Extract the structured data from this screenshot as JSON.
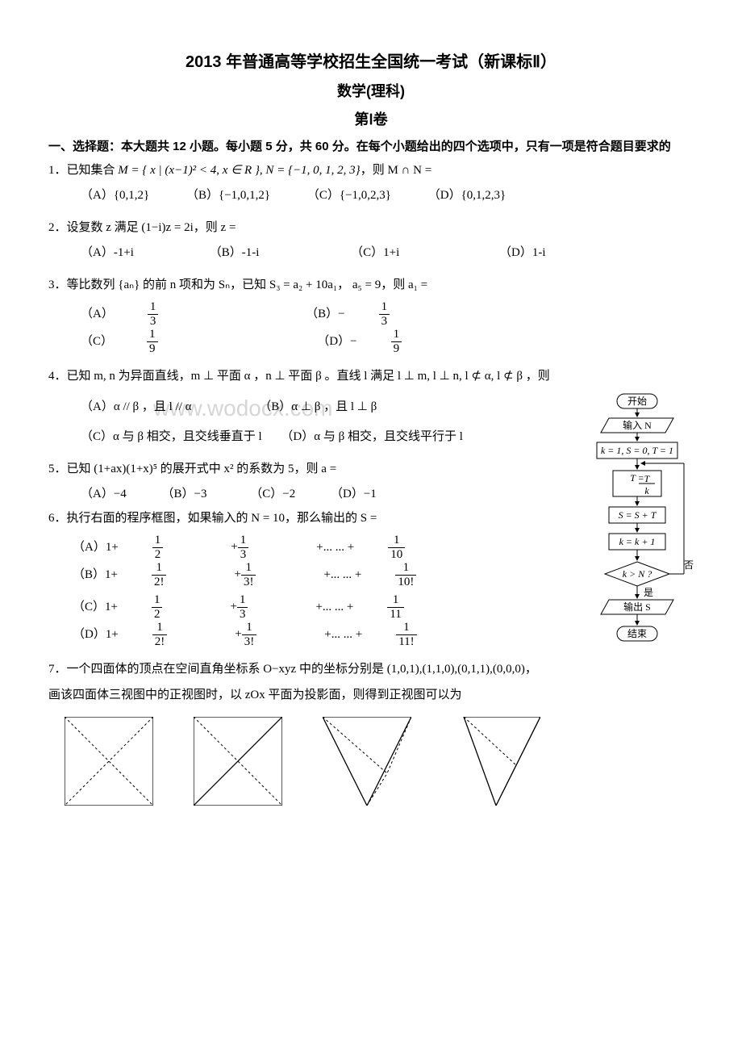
{
  "title": "2013 年普通高等学校招生全国统一考试（新课标Ⅱ）",
  "subtitle": "数学(理科)",
  "section": "第Ⅰ卷",
  "instructions": "一、选择题：本大题共 12 小题。每小题 5 分，共 60 分。在每个小题给出的四个选项中，只有一项是符合题目要求的",
  "watermark": "www.wodocx.com",
  "q1": {
    "text_pre": "1．已知集合 ",
    "math": "M = { x | (x−1)² < 4, x ∈ R }, N = {−1, 0, 1, 2, 3}",
    "text_post": "，则 M ∩ N =",
    "A": "（A）{0,1,2}",
    "B": "（B）{−1,0,1,2}",
    "C": "（C）{−1,0,2,3}",
    "D": "（D）{0,1,2,3}"
  },
  "q2": {
    "text": "2．设复数 z 满足 (1−i)z = 2i，则 z =",
    "A": "（A）-1+i",
    "B": "（B）-1-i",
    "C": "（C）1+i",
    "D": "（D）1-i"
  },
  "q3": {
    "text": "3．等比数列 {aₙ} 的前 n 项和为 Sₙ，已知 S₃ = a₂ + 10a₁， a₅ = 9，则 a₁ =",
    "A_label": "（A）",
    "A_num": "1",
    "A_den": "3",
    "B_label": "（B）−",
    "B_num": "1",
    "B_den": "3",
    "C_label": "（C）",
    "C_num": "1",
    "C_den": "9",
    "D_label": "（D）−",
    "D_num": "1",
    "D_den": "9"
  },
  "q4": {
    "text": "4．已知 m, n 为异面直线，m ⊥ 平面 α ，n ⊥ 平面 β 。直线 l 满足 l ⊥ m, l ⊥ n, l ⊄ α, l ⊄ β ，则",
    "A": "（A）α // β ，且 l // α",
    "B": "（B）α ⊥ β ，且 l ⊥ β",
    "C": "（C）α 与 β 相交，且交线垂直于 l",
    "D": "（D）α 与 β 相交，且交线平行于 l"
  },
  "q5": {
    "text": "5．已知 (1+ax)(1+x)⁵ 的展开式中 x² 的系数为 5，则 a =",
    "A": "（A）−4",
    "B": "（B）−3",
    "C": "（C）−2",
    "D": "（D）−1"
  },
  "q6": {
    "text": "6．执行右面的程序框图，如果输入的 N = 10，那么输出的 S =",
    "A_pre": "（A）1+",
    "A_mid": "+... ... +",
    "A_n1": "1",
    "A_d1": "2",
    "A_n2": "1",
    "A_d2": "3",
    "A_n3": "1",
    "A_d3": "10",
    "B_pre": "（B）1+",
    "B_mid": "+... ... +",
    "B_n1": "1",
    "B_d1": "2!",
    "B_n2": "1",
    "B_d2": "3!",
    "B_n3": "1",
    "B_d3": "10!",
    "C_pre": "（C）1+",
    "C_mid": "+... ... +",
    "C_n1": "1",
    "C_d1": "2",
    "C_n2": "1",
    "C_d2": "3",
    "C_n3": "1",
    "C_d3": "11",
    "D_pre": "（D）1+",
    "D_mid": "+... ... +",
    "D_n1": "1",
    "D_d1": "2!",
    "D_n2": "1",
    "D_d2": "3!",
    "D_n3": "1",
    "D_d3": "11!"
  },
  "q7": {
    "text": "7．一个四面体的顶点在空间直角坐标系 O−xyz 中的坐标分别是 (1,0,1),(1,1,0),(0,1,1),(0,0,0)，",
    "text2": "画该四面体三视图中的正视图时，以 zOx 平面为投影面，则得到正视图可以为"
  },
  "flowchart": {
    "start": "开始",
    "input": "输入 N",
    "init": "k = 1, S = 0, T = 1",
    "calc": "T = T / k",
    "acc": "S = S + T",
    "inc": "k = k + 1",
    "cond": "k > N ?",
    "yes": "是",
    "no": "否",
    "output": "输出 S",
    "end": "结束"
  },
  "views": {
    "size": 110,
    "stroke": "#000",
    "dash": "3,3",
    "A": {
      "solid": [
        "0,0 110,0 110,110 0,110 0,0"
      ],
      "dashed": [
        "0,0 110,110",
        "110,0 0,110"
      ]
    },
    "B": {
      "solid": [
        "0,0 110,0 110,110 0,110 0,0",
        "110,0 0,110"
      ],
      "dashed": [
        "0,0 110,110"
      ]
    },
    "C": {
      "solid": [
        "0,0 110,0 55,110 0,0"
      ],
      "dashed": [
        "0,0 80,70",
        "110,0 80,70",
        "55,110 80,70"
      ]
    },
    "D": {
      "solid": [
        "15,0 110,0 55,110 15,0"
      ],
      "dashed": [
        "15,0 80,60",
        "110,0 80,60",
        "55,110 80,60"
      ]
    }
  }
}
